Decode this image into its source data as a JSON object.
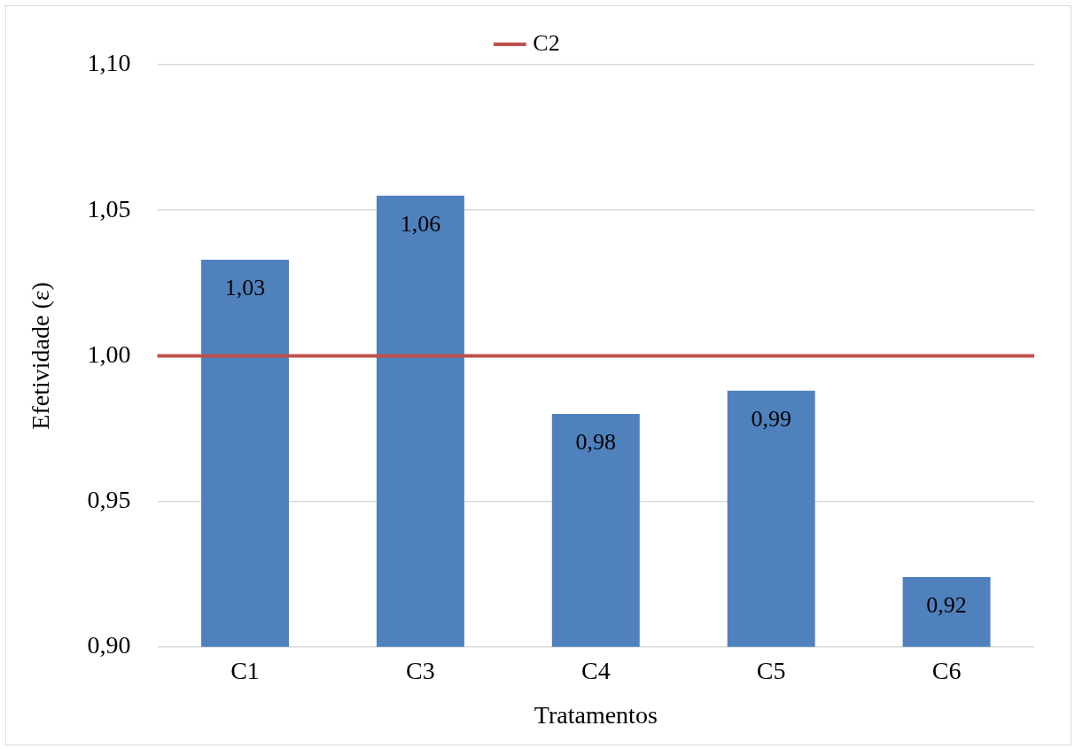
{
  "chart_data": {
    "type": "bar",
    "xlabel": "Tratamentos",
    "ylabel": "Efetividade (ε)",
    "categories": [
      "C1",
      "C3",
      "C4",
      "C5",
      "C6"
    ],
    "values": [
      1.033,
      1.055,
      0.98,
      0.988,
      0.924
    ],
    "value_labels": [
      "1,03",
      "1,06",
      "0,98",
      "0,99",
      "0,92"
    ],
    "color": "#4f81bd",
    "ylim": [
      0.9,
      1.1
    ],
    "yticks": [
      {
        "value": 0.9,
        "label": "0,90"
      },
      {
        "value": 0.95,
        "label": "0,95"
      },
      {
        "value": 1.0,
        "label": "1,00"
      },
      {
        "value": 1.05,
        "label": "1,05"
      },
      {
        "value": 1.1,
        "label": "1,10"
      }
    ],
    "ref_lines": [
      {
        "axis": "y",
        "value": 1.0,
        "label": "C2",
        "color": "#c0504d"
      }
    ],
    "grid": "y",
    "legend": "top"
  }
}
